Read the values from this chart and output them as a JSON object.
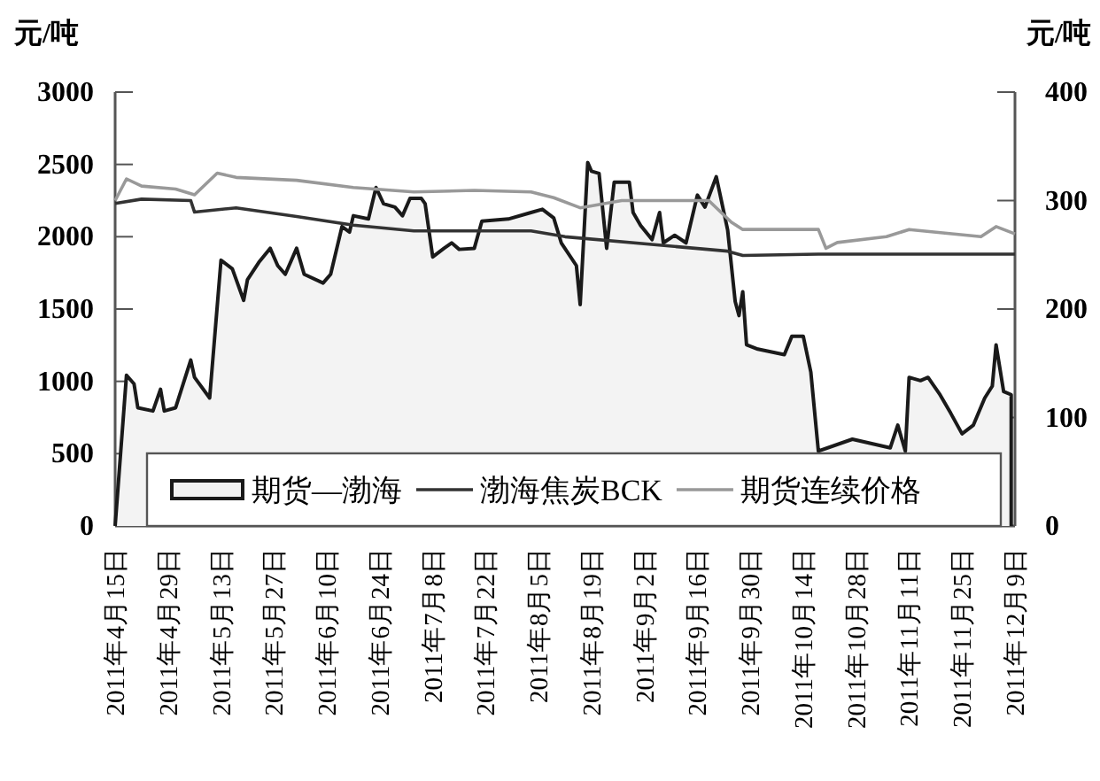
{
  "chart_data": {
    "type": "line",
    "ylabel": "元/吨",
    "y2label": "元/吨",
    "ylim": [
      0,
      3000
    ],
    "yticks": [
      0,
      500,
      1000,
      1500,
      2000,
      2500,
      3000
    ],
    "y2lim": [
      0,
      400
    ],
    "y2ticks": [
      0,
      100,
      200,
      300,
      400
    ],
    "xlim": [
      "2011-04-15",
      "2011-12-09"
    ],
    "xticks": [
      {
        "value": "2011-04-15",
        "label": "2011年4月15日"
      },
      {
        "value": "2011-04-29",
        "label": "2011年4月29日"
      },
      {
        "value": "2011-05-13",
        "label": "2011年5月13日"
      },
      {
        "value": "2011-05-27",
        "label": "2011年5月27日"
      },
      {
        "value": "2011-06-10",
        "label": "2011年6月10日"
      },
      {
        "value": "2011-06-24",
        "label": "2011年6月24日"
      },
      {
        "value": "2011-07-08",
        "label": "2011年7月8日"
      },
      {
        "value": "2011-07-22",
        "label": "2011年7月22日"
      },
      {
        "value": "2011-08-05",
        "label": "2011年8月5日"
      },
      {
        "value": "2011-08-19",
        "label": "2011年8月19日"
      },
      {
        "value": "2011-09-02",
        "label": "2011年9月2日"
      },
      {
        "value": "2011-09-16",
        "label": "2011年9月16日"
      },
      {
        "value": "2011-09-30",
        "label": "2011年9月30日"
      },
      {
        "value": "2011-10-14",
        "label": "2011年10月14日"
      },
      {
        "value": "2011-10-28",
        "label": "2011年10月28日"
      },
      {
        "value": "2011-11-11",
        "label": "2011年11月11日"
      },
      {
        "value": "2011-11-25",
        "label": "2011年11月25日"
      },
      {
        "value": "2011-12-09",
        "label": "2011年12月9日"
      }
    ],
    "legend": "bottom",
    "grid": false,
    "series": [
      {
        "name": "期货—渤海",
        "type": "area",
        "axis": "y2",
        "color": "#1a1a1a",
        "x": [
          "2011-04-15",
          "2011-04-18",
          "2011-04-20",
          "2011-04-21",
          "2011-04-25",
          "2011-04-27",
          "2011-04-28",
          "2011-05-01",
          "2011-05-05",
          "2011-05-06",
          "2011-05-10",
          "2011-05-13",
          "2011-05-16",
          "2011-05-19",
          "2011-05-20",
          "2011-05-23",
          "2011-05-26",
          "2011-05-28",
          "2011-05-30",
          "2011-06-02",
          "2011-06-04",
          "2011-06-09",
          "2011-06-11",
          "2011-06-14",
          "2011-06-16",
          "2011-06-17",
          "2011-06-21",
          "2011-06-23",
          "2011-06-25",
          "2011-06-28",
          "2011-06-30",
          "2011-07-02",
          "2011-07-05",
          "2011-07-06",
          "2011-07-08",
          "2011-07-11",
          "2011-07-13",
          "2011-07-15",
          "2011-07-19",
          "2011-07-21",
          "2011-07-28",
          "2011-08-03",
          "2011-08-06",
          "2011-08-09",
          "2011-08-11",
          "2011-08-15",
          "2011-08-16",
          "2011-08-18",
          "2011-08-19",
          "2011-08-21",
          "2011-08-23",
          "2011-08-25",
          "2011-08-29",
          "2011-08-30",
          "2011-09-01",
          "2011-09-04",
          "2011-09-06",
          "2011-09-07",
          "2011-09-10",
          "2011-09-13",
          "2011-09-16",
          "2011-09-18",
          "2011-09-21",
          "2011-09-24",
          "2011-09-26",
          "2011-09-27",
          "2011-09-28",
          "2011-09-29",
          "2011-10-02",
          "2011-10-09",
          "2011-10-11",
          "2011-10-14",
          "2011-10-16",
          "2011-10-18",
          "2011-10-20",
          "2011-10-23",
          "2011-10-27",
          "2011-10-29",
          "2011-11-01",
          "2011-11-06",
          "2011-11-08",
          "2011-11-10",
          "2011-11-11",
          "2011-11-14",
          "2011-11-16",
          "2011-11-19",
          "2011-11-22",
          "2011-11-25",
          "2011-11-28",
          "2011-12-01",
          "2011-12-03",
          "2011-12-04",
          "2011-12-06",
          "2011-12-08"
        ],
        "values": [
          0,
          139,
          131,
          109,
          106,
          126,
          106,
          109,
          153,
          137,
          118,
          245,
          237,
          208,
          227,
          243,
          256,
          240,
          232,
          256,
          232,
          224,
          232,
          276,
          271,
          286,
          283,
          312,
          297,
          294,
          286,
          302,
          302,
          297,
          248,
          256,
          261,
          255,
          256,
          281,
          283,
          289,
          292,
          284,
          261,
          240,
          204,
          335,
          327,
          325,
          256,
          317,
          317,
          289,
          277,
          264,
          289,
          261,
          268,
          261,
          305,
          294,
          322,
          273,
          207,
          194,
          216,
          167,
          163,
          158,
          175,
          175,
          142,
          69,
          null,
          null,
          80,
          null,
          null,
          72,
          93,
          69,
          137,
          134,
          137,
          122,
          104,
          85,
          93,
          118,
          129,
          167,
          124,
          121
        ]
      },
      {
        "name": "渤海焦炭BCK",
        "color": "#333333",
        "x": [
          "2011-04-15",
          "2011-04-22",
          "2011-05-05",
          "2011-05-06",
          "2011-05-17",
          "2011-06-02",
          "2011-06-17",
          "2011-07-03",
          "2011-08-03",
          "2011-08-12",
          "2011-09-24",
          "2011-09-28",
          "2011-10-18",
          "2011-12-09"
        ],
        "values": [
          2230,
          2260,
          2250,
          2170,
          2200,
          2140,
          2080,
          2040,
          2040,
          2000,
          1900,
          1870,
          1880,
          1880
        ]
      },
      {
        "name": "期货连续价格",
        "color": "#999999",
        "x": [
          "2011-04-15",
          "2011-04-18",
          "2011-04-22",
          "2011-05-01",
          "2011-05-06",
          "2011-05-12",
          "2011-05-17",
          "2011-06-02",
          "2011-06-17",
          "2011-07-03",
          "2011-07-19",
          "2011-08-03",
          "2011-08-09",
          "2011-08-16",
          "2011-08-27",
          "2011-09-19",
          "2011-09-25",
          "2011-09-28",
          "2011-10-18",
          "2011-10-20",
          "2011-10-23",
          "2011-11-05",
          "2011-11-11",
          "2011-11-30",
          "2011-12-04",
          "2011-12-09"
        ],
        "values": [
          2250,
          2400,
          2350,
          2330,
          2290,
          2440,
          2410,
          2390,
          2340,
          2310,
          2320,
          2310,
          2270,
          2200,
          2250,
          2250,
          2100,
          2050,
          2050,
          1920,
          1960,
          2000,
          2050,
          2000,
          2070,
          2020
        ]
      }
    ]
  }
}
